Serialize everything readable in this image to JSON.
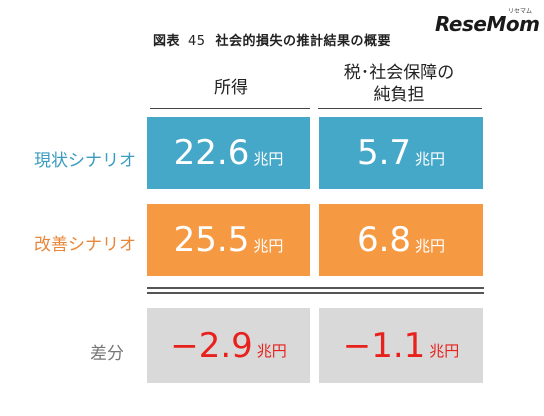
{
  "header": {
    "title_prefix": "図表",
    "title_number": "45",
    "title_text": "社会的損失の推計結果の概要",
    "logo_text": "ReseMom",
    "logo_kana": "リセマム"
  },
  "columns": [
    {
      "label_line1": "所得",
      "label_line2": ""
    },
    {
      "label_line1": "税･社会保障の",
      "label_line2": "純負担"
    }
  ],
  "rows": [
    {
      "label": "現状シナリオ",
      "label_color": "#3a9cc0",
      "cell_color": "#46a8c8",
      "cells": [
        {
          "value": "22.6",
          "unit": "兆円"
        },
        {
          "value": "5.7",
          "unit": "兆円"
        }
      ]
    },
    {
      "label": "改善シナリオ",
      "label_color": "#e8873a",
      "cell_color": "#f59a43",
      "cells": [
        {
          "value": "25.5",
          "unit": "兆円"
        },
        {
          "value": "6.8",
          "unit": "兆円"
        }
      ]
    },
    {
      "label": "差分",
      "label_color": "#777777",
      "cell_color": "#d9d9d9",
      "cells": [
        {
          "value": "−2.9",
          "unit": "兆円"
        },
        {
          "value": "−1.1",
          "unit": "兆円"
        }
      ]
    }
  ],
  "colors": {
    "diff_value": "#e8211d",
    "header_text": "#222222"
  }
}
